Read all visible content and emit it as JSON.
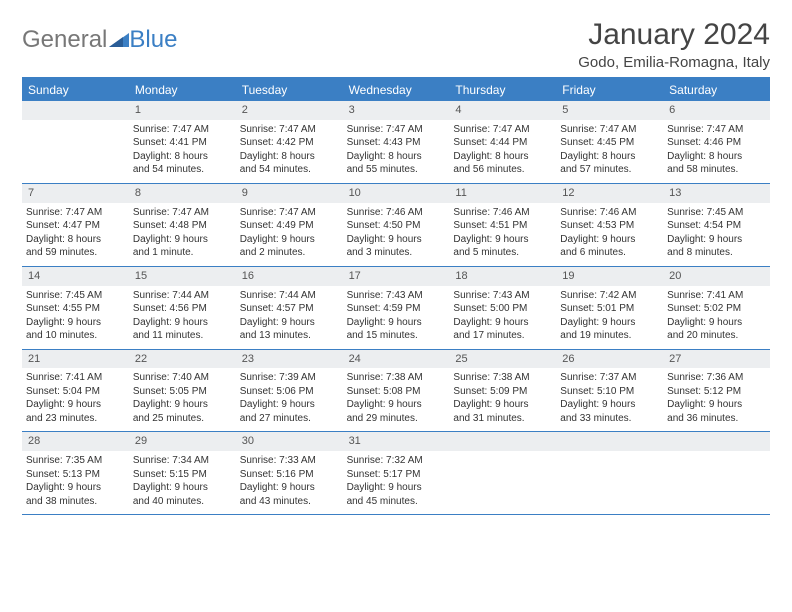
{
  "logo": {
    "text_a": "General",
    "text_b": "Blue"
  },
  "title": "January 2024",
  "location": "Godo, Emilia-Romagna, Italy",
  "colors": {
    "header_bg": "#3b7fc4",
    "daynum_bg": "#eceef0",
    "text": "#333333",
    "title_text": "#444444"
  },
  "day_names": [
    "Sunday",
    "Monday",
    "Tuesday",
    "Wednesday",
    "Thursday",
    "Friday",
    "Saturday"
  ],
  "weeks": [
    [
      {
        "day": "",
        "sunrise": "",
        "sunset": "",
        "daylight1": "",
        "daylight2": ""
      },
      {
        "day": "1",
        "sunrise": "Sunrise: 7:47 AM",
        "sunset": "Sunset: 4:41 PM",
        "daylight1": "Daylight: 8 hours",
        "daylight2": "and 54 minutes."
      },
      {
        "day": "2",
        "sunrise": "Sunrise: 7:47 AM",
        "sunset": "Sunset: 4:42 PM",
        "daylight1": "Daylight: 8 hours",
        "daylight2": "and 54 minutes."
      },
      {
        "day": "3",
        "sunrise": "Sunrise: 7:47 AM",
        "sunset": "Sunset: 4:43 PM",
        "daylight1": "Daylight: 8 hours",
        "daylight2": "and 55 minutes."
      },
      {
        "day": "4",
        "sunrise": "Sunrise: 7:47 AM",
        "sunset": "Sunset: 4:44 PM",
        "daylight1": "Daylight: 8 hours",
        "daylight2": "and 56 minutes."
      },
      {
        "day": "5",
        "sunrise": "Sunrise: 7:47 AM",
        "sunset": "Sunset: 4:45 PM",
        "daylight1": "Daylight: 8 hours",
        "daylight2": "and 57 minutes."
      },
      {
        "day": "6",
        "sunrise": "Sunrise: 7:47 AM",
        "sunset": "Sunset: 4:46 PM",
        "daylight1": "Daylight: 8 hours",
        "daylight2": "and 58 minutes."
      }
    ],
    [
      {
        "day": "7",
        "sunrise": "Sunrise: 7:47 AM",
        "sunset": "Sunset: 4:47 PM",
        "daylight1": "Daylight: 8 hours",
        "daylight2": "and 59 minutes."
      },
      {
        "day": "8",
        "sunrise": "Sunrise: 7:47 AM",
        "sunset": "Sunset: 4:48 PM",
        "daylight1": "Daylight: 9 hours",
        "daylight2": "and 1 minute."
      },
      {
        "day": "9",
        "sunrise": "Sunrise: 7:47 AM",
        "sunset": "Sunset: 4:49 PM",
        "daylight1": "Daylight: 9 hours",
        "daylight2": "and 2 minutes."
      },
      {
        "day": "10",
        "sunrise": "Sunrise: 7:46 AM",
        "sunset": "Sunset: 4:50 PM",
        "daylight1": "Daylight: 9 hours",
        "daylight2": "and 3 minutes."
      },
      {
        "day": "11",
        "sunrise": "Sunrise: 7:46 AM",
        "sunset": "Sunset: 4:51 PM",
        "daylight1": "Daylight: 9 hours",
        "daylight2": "and 5 minutes."
      },
      {
        "day": "12",
        "sunrise": "Sunrise: 7:46 AM",
        "sunset": "Sunset: 4:53 PM",
        "daylight1": "Daylight: 9 hours",
        "daylight2": "and 6 minutes."
      },
      {
        "day": "13",
        "sunrise": "Sunrise: 7:45 AM",
        "sunset": "Sunset: 4:54 PM",
        "daylight1": "Daylight: 9 hours",
        "daylight2": "and 8 minutes."
      }
    ],
    [
      {
        "day": "14",
        "sunrise": "Sunrise: 7:45 AM",
        "sunset": "Sunset: 4:55 PM",
        "daylight1": "Daylight: 9 hours",
        "daylight2": "and 10 minutes."
      },
      {
        "day": "15",
        "sunrise": "Sunrise: 7:44 AM",
        "sunset": "Sunset: 4:56 PM",
        "daylight1": "Daylight: 9 hours",
        "daylight2": "and 11 minutes."
      },
      {
        "day": "16",
        "sunrise": "Sunrise: 7:44 AM",
        "sunset": "Sunset: 4:57 PM",
        "daylight1": "Daylight: 9 hours",
        "daylight2": "and 13 minutes."
      },
      {
        "day": "17",
        "sunrise": "Sunrise: 7:43 AM",
        "sunset": "Sunset: 4:59 PM",
        "daylight1": "Daylight: 9 hours",
        "daylight2": "and 15 minutes."
      },
      {
        "day": "18",
        "sunrise": "Sunrise: 7:43 AM",
        "sunset": "Sunset: 5:00 PM",
        "daylight1": "Daylight: 9 hours",
        "daylight2": "and 17 minutes."
      },
      {
        "day": "19",
        "sunrise": "Sunrise: 7:42 AM",
        "sunset": "Sunset: 5:01 PM",
        "daylight1": "Daylight: 9 hours",
        "daylight2": "and 19 minutes."
      },
      {
        "day": "20",
        "sunrise": "Sunrise: 7:41 AM",
        "sunset": "Sunset: 5:02 PM",
        "daylight1": "Daylight: 9 hours",
        "daylight2": "and 20 minutes."
      }
    ],
    [
      {
        "day": "21",
        "sunrise": "Sunrise: 7:41 AM",
        "sunset": "Sunset: 5:04 PM",
        "daylight1": "Daylight: 9 hours",
        "daylight2": "and 23 minutes."
      },
      {
        "day": "22",
        "sunrise": "Sunrise: 7:40 AM",
        "sunset": "Sunset: 5:05 PM",
        "daylight1": "Daylight: 9 hours",
        "daylight2": "and 25 minutes."
      },
      {
        "day": "23",
        "sunrise": "Sunrise: 7:39 AM",
        "sunset": "Sunset: 5:06 PM",
        "daylight1": "Daylight: 9 hours",
        "daylight2": "and 27 minutes."
      },
      {
        "day": "24",
        "sunrise": "Sunrise: 7:38 AM",
        "sunset": "Sunset: 5:08 PM",
        "daylight1": "Daylight: 9 hours",
        "daylight2": "and 29 minutes."
      },
      {
        "day": "25",
        "sunrise": "Sunrise: 7:38 AM",
        "sunset": "Sunset: 5:09 PM",
        "daylight1": "Daylight: 9 hours",
        "daylight2": "and 31 minutes."
      },
      {
        "day": "26",
        "sunrise": "Sunrise: 7:37 AM",
        "sunset": "Sunset: 5:10 PM",
        "daylight1": "Daylight: 9 hours",
        "daylight2": "and 33 minutes."
      },
      {
        "day": "27",
        "sunrise": "Sunrise: 7:36 AM",
        "sunset": "Sunset: 5:12 PM",
        "daylight1": "Daylight: 9 hours",
        "daylight2": "and 36 minutes."
      }
    ],
    [
      {
        "day": "28",
        "sunrise": "Sunrise: 7:35 AM",
        "sunset": "Sunset: 5:13 PM",
        "daylight1": "Daylight: 9 hours",
        "daylight2": "and 38 minutes."
      },
      {
        "day": "29",
        "sunrise": "Sunrise: 7:34 AM",
        "sunset": "Sunset: 5:15 PM",
        "daylight1": "Daylight: 9 hours",
        "daylight2": "and 40 minutes."
      },
      {
        "day": "30",
        "sunrise": "Sunrise: 7:33 AM",
        "sunset": "Sunset: 5:16 PM",
        "daylight1": "Daylight: 9 hours",
        "daylight2": "and 43 minutes."
      },
      {
        "day": "31",
        "sunrise": "Sunrise: 7:32 AM",
        "sunset": "Sunset: 5:17 PM",
        "daylight1": "Daylight: 9 hours",
        "daylight2": "and 45 minutes."
      },
      {
        "day": "",
        "sunrise": "",
        "sunset": "",
        "daylight1": "",
        "daylight2": ""
      },
      {
        "day": "",
        "sunrise": "",
        "sunset": "",
        "daylight1": "",
        "daylight2": ""
      },
      {
        "day": "",
        "sunrise": "",
        "sunset": "",
        "daylight1": "",
        "daylight2": ""
      }
    ]
  ]
}
